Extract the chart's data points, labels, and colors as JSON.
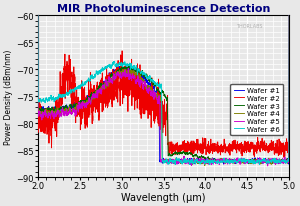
{
  "title": "MIR Photoluminescence Detection",
  "xlabel": "Wavelength (μm)",
  "ylabel": "Power Density (dBm/nm)",
  "xlim": [
    2.0,
    5.0
  ],
  "ylim": [
    -90,
    -60
  ],
  "yticks": [
    -90,
    -85,
    -80,
    -75,
    -70,
    -65,
    -60
  ],
  "xticks": [
    2.0,
    2.5,
    3.0,
    3.5,
    4.0,
    4.5,
    5.0
  ],
  "background_color": "#e8e8e8",
  "grid_color": "#ffffff",
  "title_color": "#000080",
  "watermark": "THORLABS",
  "legend_labels": [
    "Wafer #1",
    "Wafer #2",
    "Wafer #3",
    "Wafer #4",
    "Wafer #5",
    "Wafer #6"
  ],
  "line_colors": [
    "#0000ee",
    "#ee0000",
    "#006400",
    "#808000",
    "#cc00cc",
    "#00cccc"
  ]
}
